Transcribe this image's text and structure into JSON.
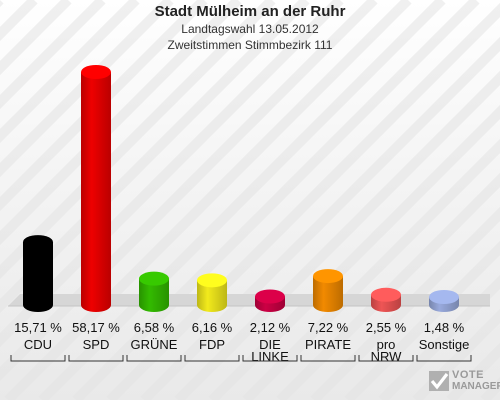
{
  "header": {
    "title": "Stadt Mülheim an der Ruhr",
    "subtitle1": "Landtagswahl 13.05.2012",
    "subtitle2": "Zweitstimmen Stimmbezirk 111"
  },
  "logo": {
    "line1": "VOTE",
    "line2": "MANAGER"
  },
  "colors": {
    "CDU": "#000000",
    "SPD": "#ee0000",
    "GRÜNE": "#33bb00",
    "FDP": "#f2ea1c",
    "DIE LINKE": "#cc0044",
    "PIRATE": "#f28a00",
    "pro NRW": "#ee5555",
    "Sonstige": "#99aadd"
  },
  "chart_data": {
    "type": "bar",
    "title": "Stadt Mülheim an der Ruhr",
    "categories": [
      "CDU",
      "SPD",
      "GRÜNE",
      "FDP",
      "DIE LINKE",
      "PIRATE",
      "pro NRW",
      "Sonstige"
    ],
    "category_lines": [
      [
        "CDU"
      ],
      [
        "SPD"
      ],
      [
        "GRÜNE"
      ],
      [
        "FDP"
      ],
      [
        "DIE",
        "LINKE"
      ],
      [
        "PIRATE"
      ],
      [
        "pro",
        "NRW"
      ],
      [
        "Sonstige"
      ]
    ],
    "values": [
      15.71,
      58.17,
      6.58,
      6.16,
      2.12,
      7.22,
      2.55,
      1.48
    ],
    "labels": [
      "15,71 %",
      "58,17 %",
      "6,58 %",
      "6,16 %",
      "2,12 %",
      "7,22 %",
      "2,55 %",
      "1,48 %"
    ],
    "ylim": [
      0,
      58.17
    ],
    "grid": false,
    "legend": "none"
  }
}
